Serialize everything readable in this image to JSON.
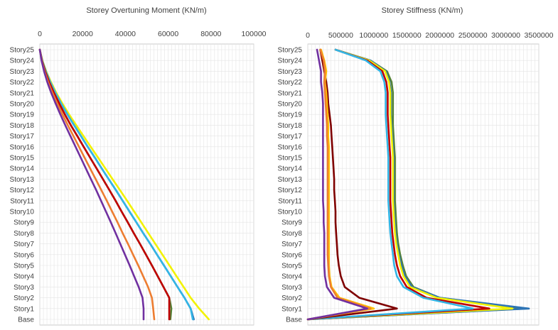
{
  "chart_data": [
    {
      "type": "line",
      "title": "Storey Overtuning Moment (KN/m)",
      "categories": [
        "Story25",
        "Story24",
        "Story23",
        "Story22",
        "Story21",
        "Story20",
        "Story19",
        "Story18",
        "Story17",
        "Story16",
        "Story15",
        "Story14",
        "Story13",
        "Story12",
        "Story11",
        "Story10",
        "Story9",
        "Story8",
        "Story7",
        "Story6",
        "Story5",
        "Story4",
        "Story3",
        "Story2",
        "Story1",
        "Base"
      ],
      "xlim": [
        0,
        100000
      ],
      "xticks": [
        "0",
        "20000",
        "40000",
        "60000",
        "80000",
        "100000"
      ],
      "xtick_values": [
        0,
        20000,
        40000,
        60000,
        80000,
        100000
      ],
      "grid": true,
      "legend": "none",
      "series": [
        {
          "color": "#F2F200",
          "values": [
            0,
            1200,
            3000,
            5200,
            7700,
            10600,
            13700,
            17000,
            20400,
            23800,
            27200,
            30600,
            34000,
            37400,
            40800,
            44100,
            47400,
            50700,
            54000,
            57300,
            60600,
            63900,
            67200,
            70500,
            74500,
            79000
          ]
        },
        {
          "color": "#2E75B6",
          "values": [
            0,
            1100,
            2800,
            4900,
            7300,
            10000,
            12900,
            16000,
            19200,
            22400,
            25700,
            28900,
            32200,
            35500,
            38700,
            41900,
            45100,
            48300,
            51600,
            54800,
            58000,
            61200,
            64400,
            67600,
            70500,
            72000
          ]
        },
        {
          "color": "#33B5E5",
          "values": [
            0,
            1100,
            2800,
            4900,
            7300,
            10000,
            12900,
            16000,
            19200,
            22400,
            25700,
            28900,
            32200,
            35500,
            38700,
            41900,
            45100,
            48300,
            51600,
            54800,
            58000,
            61200,
            64400,
            67600,
            70500,
            71500
          ]
        },
        {
          "color": "#548235",
          "values": [
            0,
            1000,
            2500,
            4400,
            6600,
            9100,
            11700,
            14500,
            17500,
            20500,
            23500,
            26500,
            29500,
            32500,
            35400,
            38200,
            41100,
            43900,
            46800,
            49600,
            52400,
            55100,
            57800,
            60500,
            61500,
            61000
          ]
        },
        {
          "color": "#C00000",
          "values": [
            0,
            1000,
            2500,
            4400,
            6600,
            9100,
            11700,
            14500,
            17500,
            20500,
            23500,
            26500,
            29500,
            32500,
            35400,
            38200,
            41100,
            43900,
            46800,
            49600,
            52400,
            55100,
            57800,
            60500,
            60500,
            60500
          ]
        },
        {
          "color": "#ED7D31",
          "values": [
            0,
            900,
            2200,
            3900,
            5900,
            8200,
            10600,
            13100,
            15700,
            18300,
            20900,
            23500,
            26100,
            28700,
            31300,
            33800,
            36300,
            38700,
            41200,
            43600,
            46000,
            48300,
            50600,
            52400,
            53000,
            53500
          ]
        },
        {
          "color": "#7030A0",
          "values": [
            0,
            800,
            2000,
            3500,
            5300,
            7400,
            9600,
            11900,
            14300,
            16700,
            19100,
            21500,
            23900,
            26300,
            28600,
            30900,
            33200,
            35400,
            37600,
            39800,
            42000,
            44100,
            46200,
            48000,
            48500,
            48500
          ]
        }
      ]
    },
    {
      "type": "line",
      "title": "Storey Stiffness (KN/m)",
      "categories": [
        "Story25",
        "Story24",
        "Story23",
        "Story22",
        "Story21",
        "Story20",
        "Story19",
        "Story18",
        "Story17",
        "Story16",
        "Story15",
        "Story14",
        "Story13",
        "Story12",
        "Story11",
        "Story10",
        "Story9",
        "Story8",
        "Story7",
        "Story6",
        "Story5",
        "Story4",
        "Story3",
        "Story2",
        "Story1",
        "Base"
      ],
      "xlim": [
        0,
        3500000
      ],
      "xticks": [
        "0",
        "500000",
        "1000000",
        "1500000",
        "2000000",
        "2500000",
        "3000000",
        "3500000"
      ],
      "xtick_values": [
        0,
        500000,
        1000000,
        1500000,
        2000000,
        2500000,
        3000000,
        3500000
      ],
      "grid": true,
      "legend": "none",
      "series": [
        {
          "color": "#548235",
          "values": [
            420000,
            950000,
            1200000,
            1270000,
            1290000,
            1290000,
            1290000,
            1290000,
            1300000,
            1310000,
            1320000,
            1320000,
            1320000,
            1320000,
            1320000,
            1330000,
            1340000,
            1350000,
            1370000,
            1400000,
            1440000,
            1490000,
            1600000,
            2000000,
            3300000,
            0
          ]
        },
        {
          "color": "#2E75B6",
          "values": [
            420000,
            950000,
            1180000,
            1240000,
            1260000,
            1260000,
            1260000,
            1270000,
            1280000,
            1290000,
            1300000,
            1300000,
            1300000,
            1300000,
            1300000,
            1310000,
            1320000,
            1330000,
            1350000,
            1380000,
            1420000,
            1470000,
            1580000,
            2000000,
            3350000,
            0
          ]
        },
        {
          "color": "#F2F200",
          "values": [
            420000,
            930000,
            1170000,
            1230000,
            1250000,
            1250000,
            1250000,
            1260000,
            1270000,
            1280000,
            1290000,
            1290000,
            1290000,
            1290000,
            1290000,
            1300000,
            1310000,
            1320000,
            1340000,
            1370000,
            1400000,
            1450000,
            1550000,
            1950000,
            3100000,
            0
          ]
        },
        {
          "color": "#C00000",
          "values": [
            420000,
            900000,
            1130000,
            1190000,
            1210000,
            1210000,
            1210000,
            1220000,
            1230000,
            1240000,
            1250000,
            1250000,
            1250000,
            1250000,
            1250000,
            1260000,
            1270000,
            1280000,
            1300000,
            1320000,
            1350000,
            1400000,
            1500000,
            1800000,
            2750000,
            0
          ]
        },
        {
          "color": "#33B5E5",
          "values": [
            420000,
            880000,
            1100000,
            1160000,
            1180000,
            1180000,
            1180000,
            1190000,
            1200000,
            1210000,
            1220000,
            1220000,
            1220000,
            1220000,
            1220000,
            1230000,
            1240000,
            1250000,
            1270000,
            1290000,
            1310000,
            1350000,
            1450000,
            1750000,
            2500000,
            0
          ]
        },
        {
          "color": "#7F0000",
          "values": [
            190000,
            220000,
            250000,
            280000,
            300000,
            310000,
            330000,
            350000,
            360000,
            370000,
            380000,
            390000,
            400000,
            400000,
            410000,
            420000,
            420000,
            430000,
            440000,
            450000,
            470000,
            500000,
            560000,
            780000,
            1350000,
            0
          ]
        },
        {
          "color": "#FFC000",
          "values": [
            200000,
            250000,
            280000,
            260000,
            280000,
            290000,
            300000,
            310000,
            310000,
            320000,
            320000,
            320000,
            320000,
            320000,
            320000,
            320000,
            320000,
            320000,
            320000,
            320000,
            320000,
            330000,
            360000,
            480000,
            1000000,
            0
          ]
        },
        {
          "color": "#ED7D31",
          "values": [
            190000,
            240000,
            260000,
            250000,
            260000,
            270000,
            280000,
            290000,
            290000,
            300000,
            300000,
            300000,
            300000,
            300000,
            300000,
            300000,
            300000,
            300000,
            300000,
            300000,
            310000,
            320000,
            350000,
            450000,
            950000,
            0
          ]
        },
        {
          "color": "#7030A0",
          "values": [
            140000,
            170000,
            200000,
            200000,
            220000,
            230000,
            230000,
            230000,
            230000,
            230000,
            230000,
            230000,
            230000,
            230000,
            230000,
            240000,
            240000,
            250000,
            250000,
            250000,
            250000,
            260000,
            290000,
            400000,
            900000,
            0
          ]
        }
      ]
    }
  ]
}
